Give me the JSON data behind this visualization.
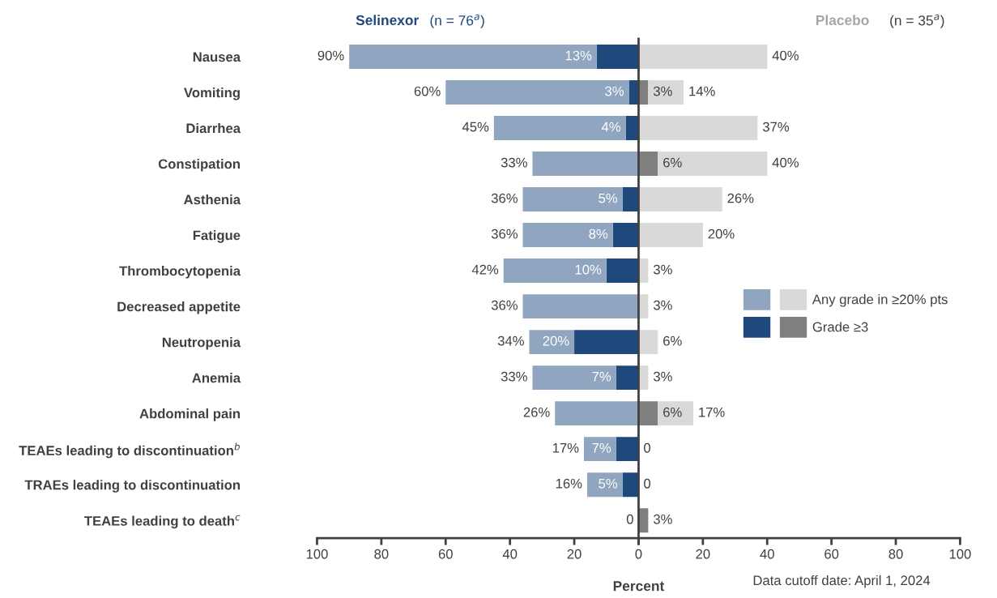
{
  "chart_data": [
    {
      "type": "bar",
      "orientation": "horizontal",
      "stacked": true,
      "title": "Selinexor",
      "subtitle": "(n = 76$^{a}$)",
      "categories": [
        "Nausea",
        "Vomiting",
        "Diarrhea",
        "Constipation",
        "Asthenia",
        "Fatigue",
        "Thrombocytopenia",
        "Decreased appetite",
        "Neutropenia",
        "Anemia",
        "Abdominal pain",
        "TEAEs leading to discontinuation$^{b}$",
        "TRAEs leading to discontinuation",
        "TEAEs leading to death$^{c}$"
      ],
      "series": [
        {
          "color": "#1f497d",
          "values": [
            13,
            3,
            4,
            null,
            5,
            8,
            10,
            null,
            20,
            7,
            null,
            7,
            5,
            null
          ],
          "value_labels": [
            "13%",
            "3%",
            "4%",
            null,
            "5%",
            "8%",
            "10%",
            null,
            "20%",
            "7%",
            null,
            "7%",
            "5%",
            null
          ]
        },
        {
          "color": "#8fa5c0",
          "values": [
            77,
            57,
            41,
            33,
            31,
            28,
            32,
            36,
            14,
            26,
            26,
            10,
            11,
            null
          ]
        }
      ],
      "totals": [
        "90%",
        "60%",
        "45%",
        "33%",
        "36%",
        "36%",
        "42%",
        "36%",
        "34%",
        "33%",
        "26%",
        "17%",
        "16%",
        "0"
      ],
      "xlim": [
        100,
        0
      ],
      "xticks": [
        100,
        80,
        60,
        40,
        20,
        {
          "value": 0,
          "label": null
        }
      ]
    },
    {
      "type": "bar",
      "orientation": "horizontal",
      "stacked": true,
      "title": "Placebo",
      "subtitle": "(n = 35$^{a}$)",
      "tick_labels": "x",
      "series": [
        {
          "name": "Grade ≥3",
          "color": "#7f7f7f",
          "values": [
            null,
            3,
            null,
            6,
            null,
            null,
            null,
            null,
            null,
            null,
            6,
            null,
            null,
            3
          ],
          "value_labels": [
            null,
            "3%",
            null,
            "6%",
            null,
            null,
            null,
            null,
            null,
            null,
            "6%",
            null,
            null,
            null
          ]
        },
        {
          "name": "Any grade in ≥20% pts",
          "color": "#d9d9d9",
          "values": [
            40,
            11,
            37,
            34,
            26,
            20,
            3,
            3,
            6,
            3,
            11,
            null,
            null,
            null
          ]
        }
      ],
      "totals": [
        "40%",
        "14%",
        "37%",
        "40%",
        "26%",
        "20%",
        "3%",
        "3%",
        "6%",
        "3%",
        "17%",
        "0",
        "0",
        "3%"
      ],
      "xlim": [
        0,
        100
      ],
      "xticks": [
        0,
        20,
        40,
        60,
        80,
        100
      ],
      "xlabel": "Percent",
      "legend": "right",
      "annotations": [
        "Data cutoff date: April 1, 2024"
      ]
    }
  ]
}
